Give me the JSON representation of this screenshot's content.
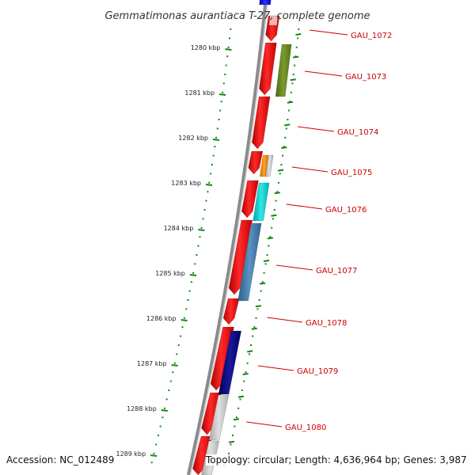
{
  "title": "Gemmatimonas aurantiaca T-27, complete genome",
  "footer": {
    "accession": "Accession: NC_012489",
    "topology": "Topology: circular; Length: 4,636,964 bp; Genes: 3,987"
  },
  "colors": {
    "forward_strand": "#ee0000",
    "tick": "#118811",
    "label": "#cc0000",
    "backbone": "#888888"
  },
  "kbp_labels": [
    "1280 kbp",
    "1281 kbp",
    "1282 kbp",
    "1283 kbp",
    "1284 kbp",
    "1285 kbp",
    "1286 kbp",
    "1287 kbp",
    "1288 kbp",
    "1289 kbp"
  ],
  "gene_labels": [
    "GAU_1072",
    "GAU_1073",
    "GAU_1074",
    "GAU_1075",
    "GAU_1076",
    "GAU_1077",
    "GAU_1078",
    "GAU_1079",
    "GAU_1080"
  ]
}
